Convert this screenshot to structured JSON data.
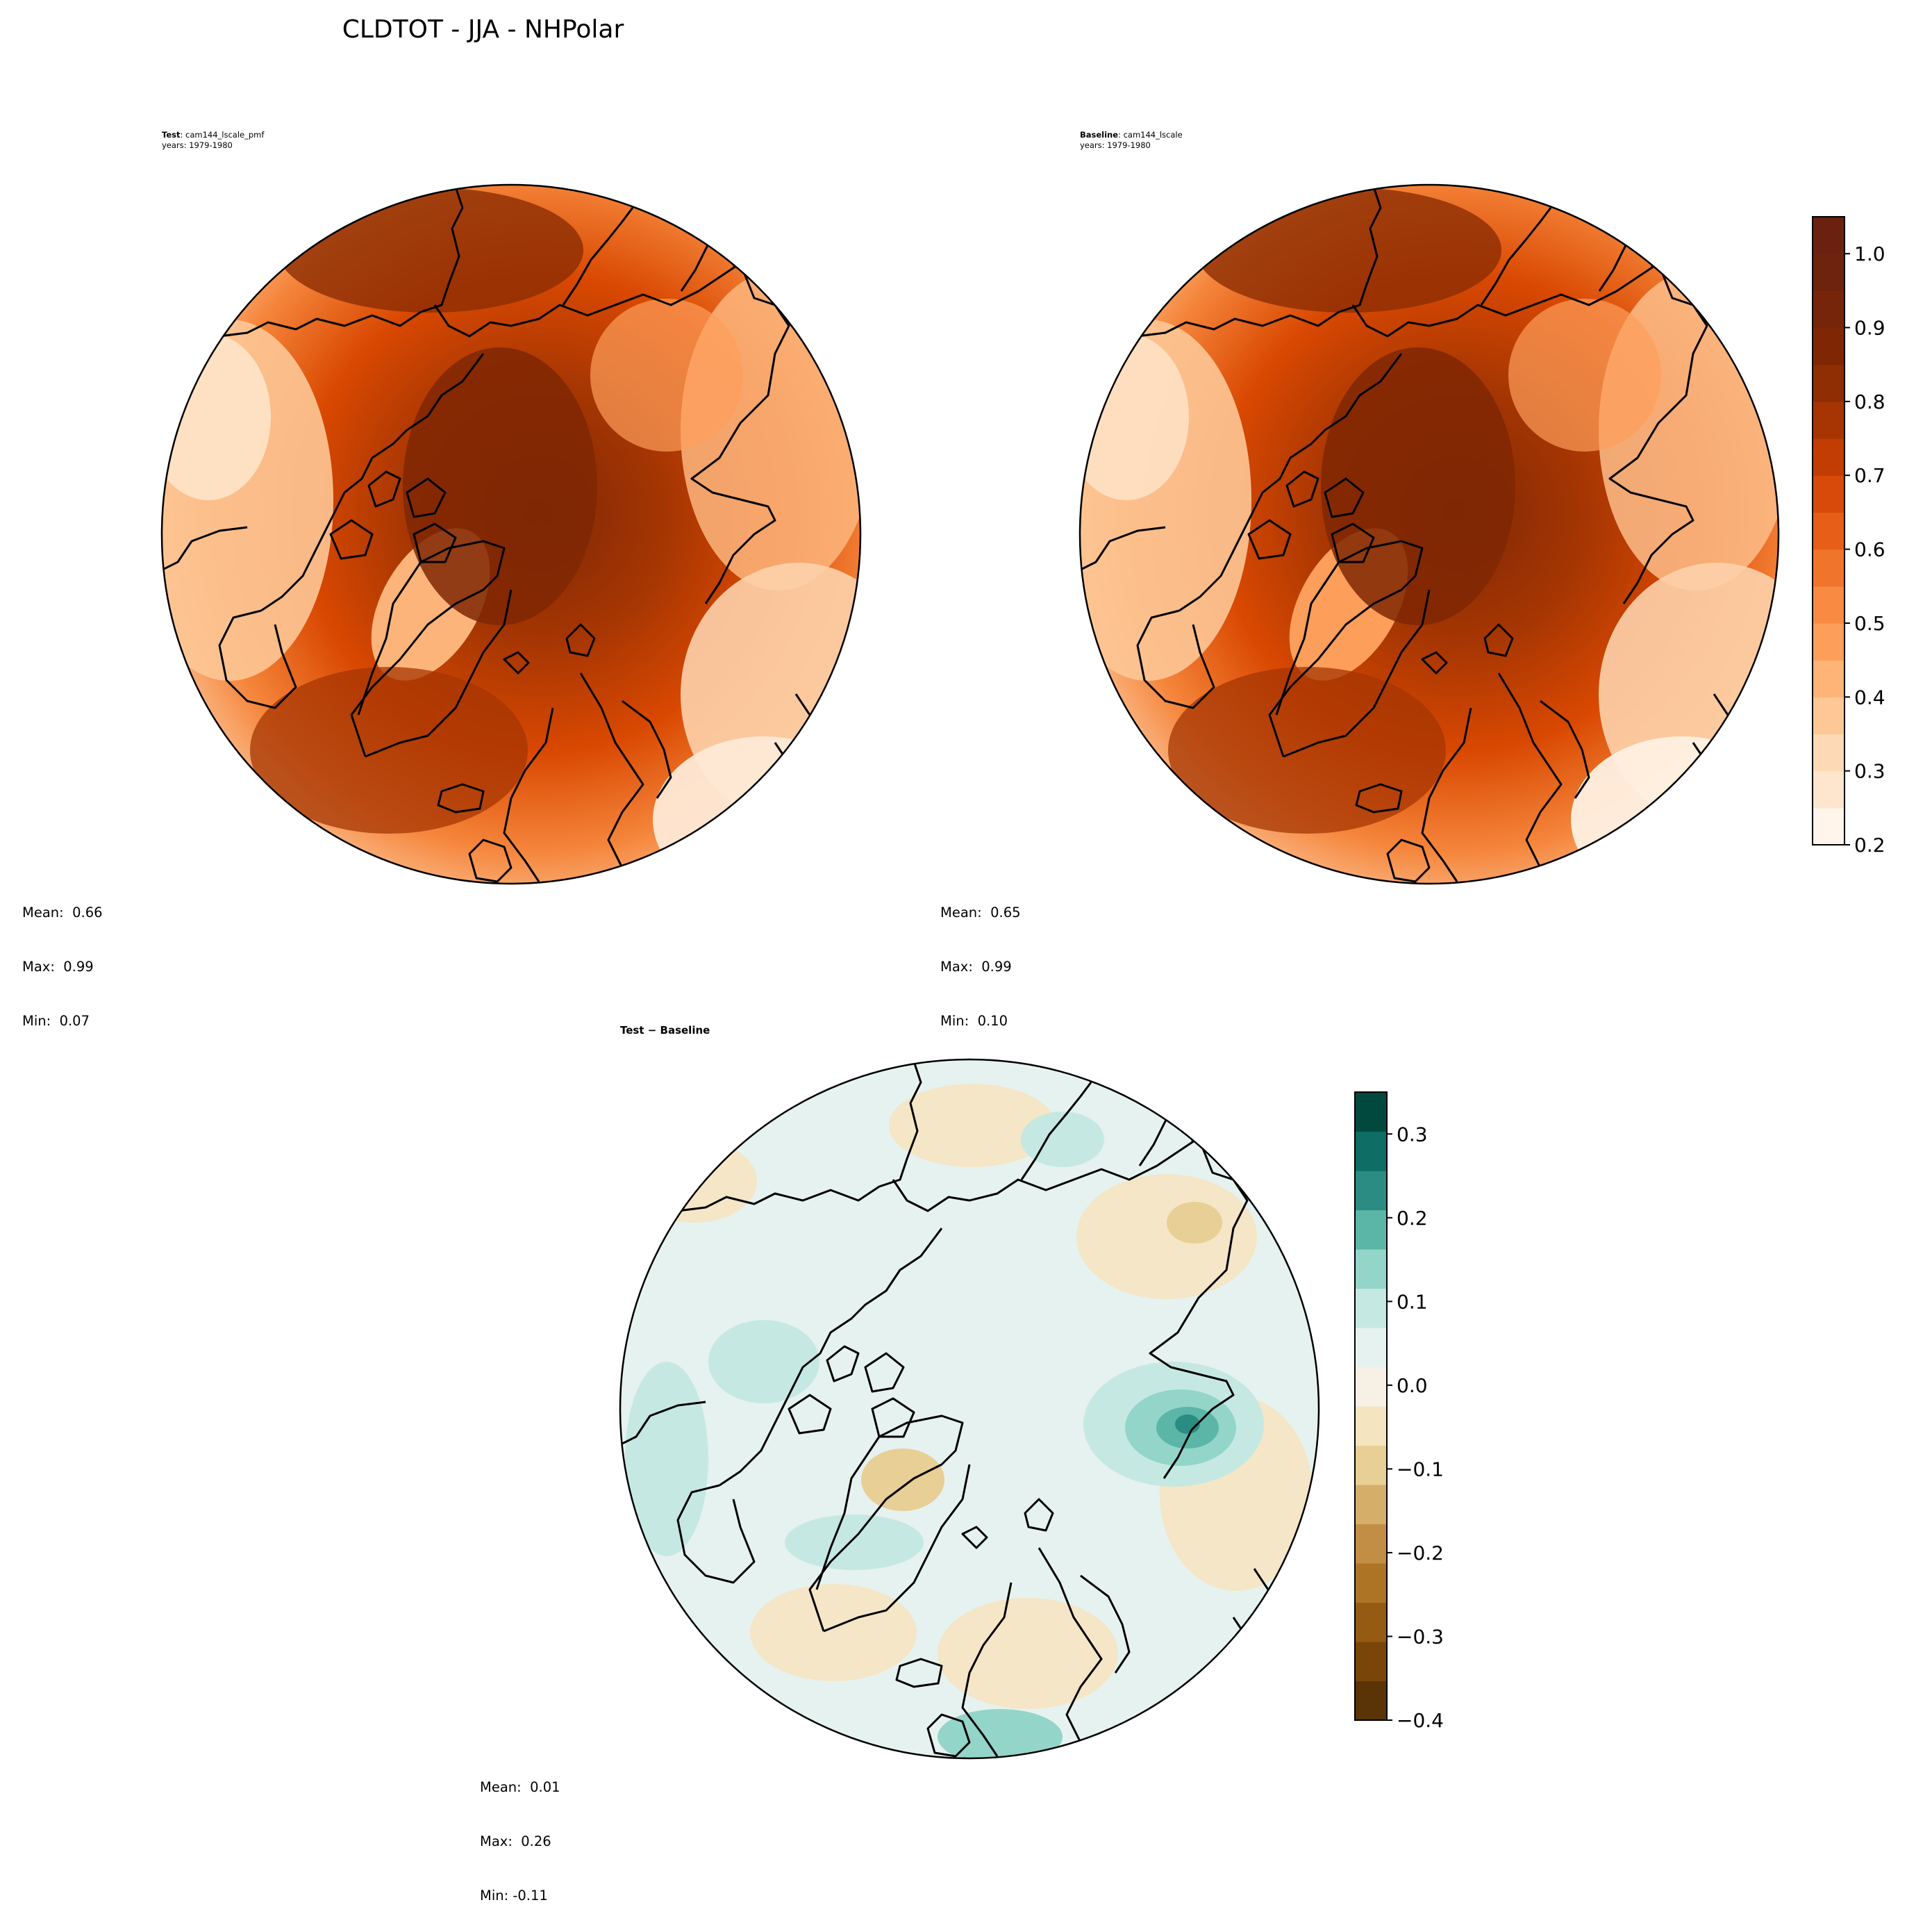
{
  "figure": {
    "title": "CLDTOT - JJA - NHPolar"
  },
  "panels": {
    "test": {
      "label": "Test",
      "case": ": cam144_lscale_pmf",
      "years": "years: 1979-1980",
      "stats": {
        "mean": "Mean:  0.66",
        "max": "Max:  0.99",
        "min": "Min:  0.07"
      }
    },
    "baseline": {
      "label": "Baseline",
      "case": ": cam144_lscale",
      "years": "years: 1979-1980",
      "stats": {
        "mean": "Mean:  0.65",
        "max": "Max:  0.99",
        "min": "Min:  0.10"
      }
    },
    "diff": {
      "label": "Test − Baseline",
      "stats": {
        "mean": "Mean:  0.01",
        "max": "Max:  0.26",
        "min": "Min: -0.11"
      }
    }
  },
  "chart_data": [
    {
      "type": "heatmap",
      "panel": "Test",
      "projection": "north polar stereographic",
      "stats": {
        "mean": 0.66,
        "max": 0.99,
        "min": 0.07
      },
      "colormap": "Oranges",
      "levels": [
        0.2,
        0.25,
        0.3,
        0.35,
        0.4,
        0.45,
        0.5,
        0.55,
        0.6,
        0.65,
        0.7,
        0.75,
        0.8,
        0.85,
        0.9,
        0.95,
        1.0,
        1.05
      ]
    },
    {
      "type": "heatmap",
      "panel": "Baseline",
      "projection": "north polar stereographic",
      "stats": {
        "mean": 0.65,
        "max": 0.99,
        "min": 0.1
      },
      "colormap": "Oranges",
      "levels": [
        0.2,
        0.25,
        0.3,
        0.35,
        0.4,
        0.45,
        0.5,
        0.55,
        0.6,
        0.65,
        0.7,
        0.75,
        0.8,
        0.85,
        0.9,
        0.95,
        1.0,
        1.05
      ],
      "colorbar": {
        "ticks": [
          0.2,
          0.3,
          0.4,
          0.5,
          0.6,
          0.7,
          0.8,
          0.9,
          1.0
        ],
        "tick_labels": [
          "0.2",
          "0.3",
          "0.4",
          "0.5",
          "0.6",
          "0.7",
          "0.8",
          "0.9",
          "1.0"
        ],
        "range": [
          0.2,
          1.05
        ],
        "colors": [
          "#fff5eb",
          "#fee6ce",
          "#fdd9b5",
          "#fdc895",
          "#fdb476",
          "#fd9f5a",
          "#f98a42",
          "#f1742c",
          "#e65e18",
          "#d84a09",
          "#c13d03",
          "#a63503",
          "#8f2d03",
          "#7f2704",
          "#76250a",
          "#6e230e",
          "#6a210f"
        ]
      }
    },
    {
      "type": "heatmap",
      "panel": "Test − Baseline",
      "projection": "north polar stereographic",
      "stats": {
        "mean": 0.01,
        "max": 0.26,
        "min": -0.11
      },
      "colormap": "BrBG",
      "colorbar": {
        "ticks": [
          -0.4,
          -0.3,
          -0.2,
          -0.1,
          0.0,
          0.1,
          0.2,
          0.3
        ],
        "tick_labels": [
          "−0.4",
          "−0.3",
          "−0.2",
          "−0.1",
          "0.0",
          "0.1",
          "0.2",
          "0.3"
        ],
        "range": [
          -0.4,
          0.35
        ],
        "colors": [
          "#5a3306",
          "#7a4509",
          "#955b13",
          "#ae7426",
          "#c28d45",
          "#d5ae6a",
          "#e8cf96",
          "#f4e4c0",
          "#f6f1e4",
          "#e6f2ef",
          "#c5e9e2",
          "#93d5c9",
          "#5bb6a8",
          "#2a8c82",
          "#0e6d64",
          "#01493f"
        ]
      }
    }
  ]
}
